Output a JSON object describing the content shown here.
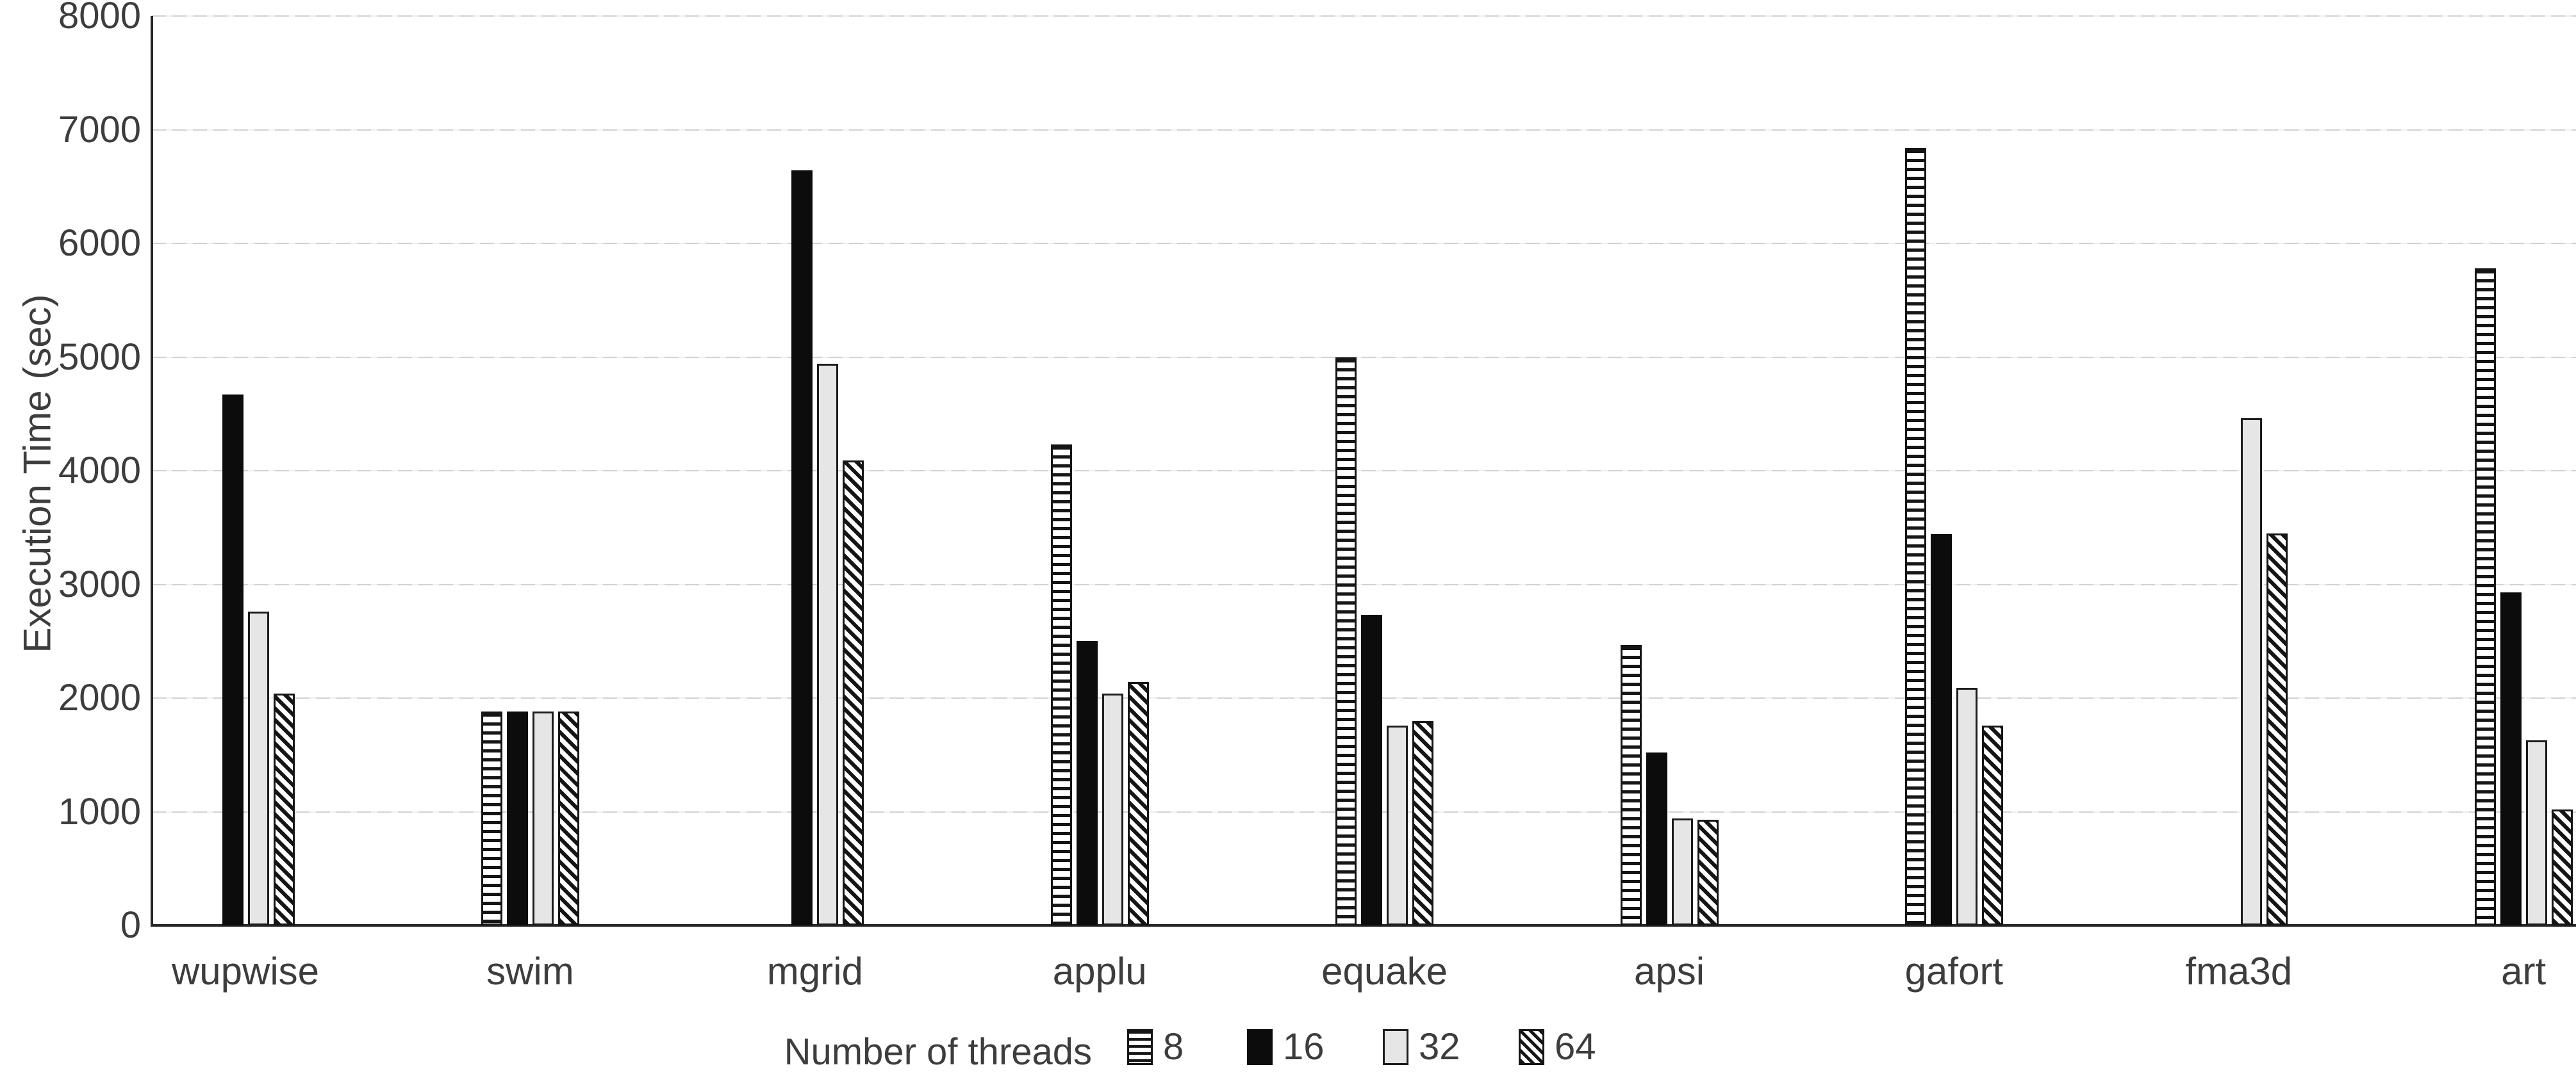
{
  "chart": {
    "y_axis_title": "Execution Time (sec)",
    "legend_title": "Number of threads",
    "colors": {
      "axis": "#262626",
      "gridline": "#d2d2d2",
      "text": "#3d3d3d",
      "solid_series": "#0c0c0c",
      "gray_series": "#e6e6e6",
      "background": "#ffffff"
    }
  },
  "chart_data": {
    "type": "bar",
    "title": "",
    "xlabel": "",
    "ylabel": "Execution Time (sec)",
    "legend_title": "Number of threads",
    "legend_position": "bottom",
    "grid": true,
    "ylim": [
      0,
      8000
    ],
    "ytick_step": 1000,
    "yticks": [
      0,
      1000,
      2000,
      3000,
      4000,
      5000,
      6000,
      7000,
      8000
    ],
    "categories": [
      "wupwise",
      "swim",
      "mgrid",
      "applu",
      "equake",
      "apsi",
      "gafort",
      "fma3d",
      "art"
    ],
    "series": [
      {
        "name": "8",
        "pattern": "horizontal-stripes",
        "values": [
          null,
          1880,
          null,
          4230,
          5000,
          2470,
          6840,
          null,
          5780
        ]
      },
      {
        "name": "16",
        "pattern": "solid-black",
        "values": [
          4670,
          1880,
          6640,
          2500,
          2730,
          1520,
          3440,
          null,
          2930
        ]
      },
      {
        "name": "32",
        "pattern": "light-gray",
        "values": [
          2760,
          1880,
          4940,
          2040,
          1760,
          940,
          2090,
          4460,
          1630
        ]
      },
      {
        "name": "64",
        "pattern": "diagonal-stripes",
        "values": [
          2040,
          1880,
          4090,
          2140,
          1800,
          930,
          1760,
          3450,
          1020
        ]
      }
    ]
  }
}
